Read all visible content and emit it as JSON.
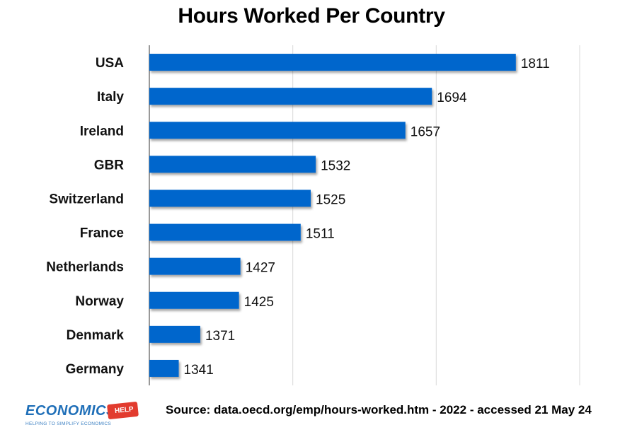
{
  "chart_data": {
    "type": "bar",
    "orientation": "horizontal",
    "title": "Hours Worked Per Country",
    "categories": [
      "USA",
      "Italy",
      "Ireland",
      "GBR",
      "Switzerland",
      "France",
      "Netherlands",
      "Norway",
      "Denmark",
      "Germany"
    ],
    "values": [
      1811,
      1694,
      1657,
      1532,
      1525,
      1511,
      1427,
      1425,
      1371,
      1341
    ],
    "xlim": [
      1300,
      1900
    ],
    "grid": true,
    "bar_color": "#0066CC",
    "data_labels": true
  },
  "source": "Source: data.oecd.org/emp/hours-worked.htm - 2022 - accessed 21 May 24",
  "logo": {
    "main": "ECONOMICS",
    "badge": "HELP",
    "tagline": "HELPING TO SIMPLIFY ECONOMICS"
  }
}
